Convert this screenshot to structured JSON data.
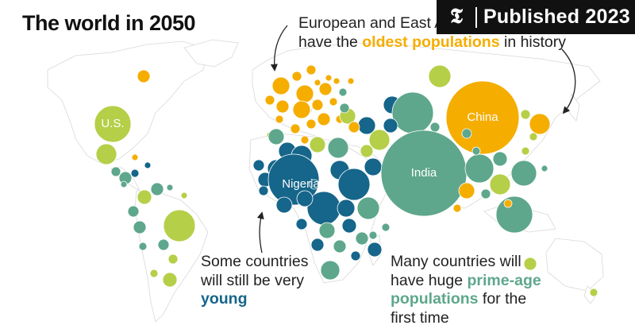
{
  "title": "The world in 2050",
  "badge": {
    "text": "Published 2023",
    "logo": "nyt-logo-icon"
  },
  "annotations": {
    "oldest": {
      "before": "European and East Asian countries will\nhave the ",
      "highlight": "oldest populations",
      "after": " in history"
    },
    "young": {
      "before": "Some countries\nwill still be very\n",
      "highlight": "young",
      "after": ""
    },
    "prime": {
      "before": "Many countries will\nhave huge ",
      "highlight": "prime-age\npopulations",
      "after": " for the\nfirst time"
    }
  },
  "colors": {
    "oldest": "#f5ad00",
    "young": "#16658a",
    "prime_age": "#5ea78c",
    "transition": "#b5cf48",
    "land": "#ffffff",
    "border": "#d8d8d8",
    "badge": "#111111"
  },
  "chart_data": {
    "type": "bubble-map",
    "categories": [
      "oldest",
      "prime_age",
      "transition",
      "young"
    ],
    "labeled_countries": [
      "U.S.",
      "Nigeria",
      "India",
      "China"
    ]
  }
}
